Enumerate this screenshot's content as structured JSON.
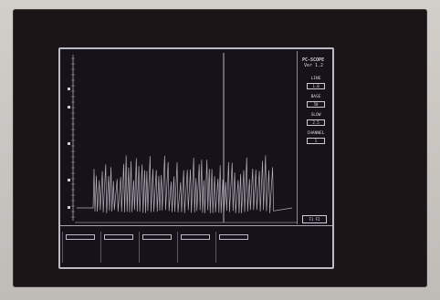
{
  "app": {
    "title": "PC-SCOPE",
    "version": "Ver 1.2"
  },
  "side_controls": [
    {
      "label": "LINE",
      "value": "1.0"
    },
    {
      "label": "BASE",
      "value": "50"
    },
    {
      "label": "SLOW",
      "value": "2.5"
    },
    {
      "label": "CHANNEL",
      "value": "1"
    }
  ],
  "side_button": {
    "label": "F1 F2"
  },
  "bottom_controls": [
    {
      "value": "",
      "text": ""
    },
    {
      "value": "",
      "text": ""
    },
    {
      "value": "",
      "text": ""
    },
    {
      "value": "",
      "text": ""
    },
    {
      "value": "",
      "text": ""
    }
  ],
  "status_lines": [
    "",
    "",
    "",
    "",
    ""
  ],
  "colors": {
    "screen_bg": "#15121a",
    "trace": "#cfcbd6",
    "grid": "#8e8a96",
    "bezel": "#1b1517"
  }
}
